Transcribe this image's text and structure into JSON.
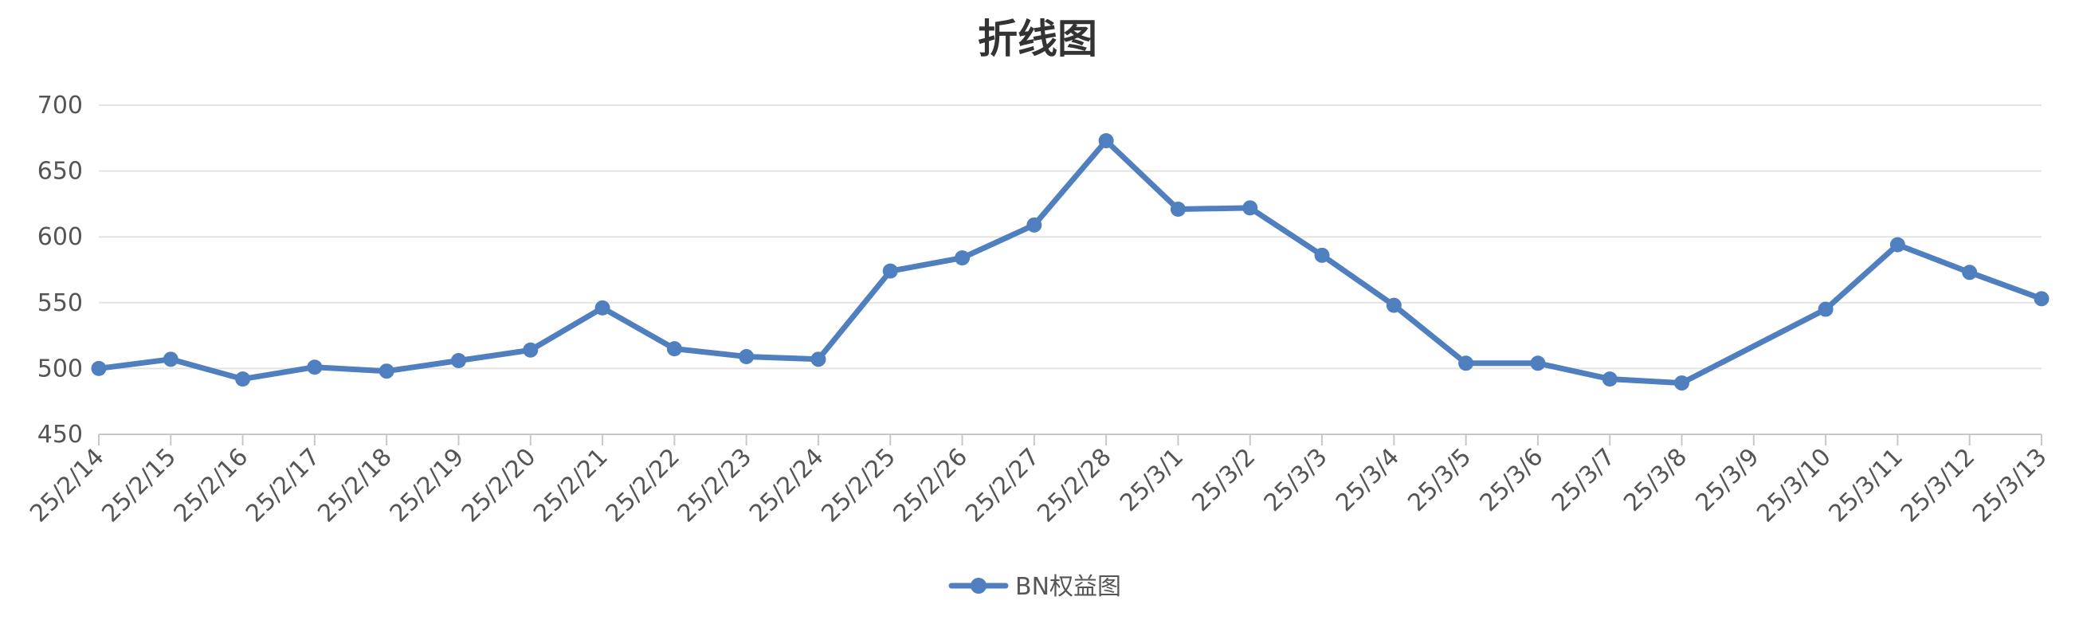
{
  "chart_data": {
    "type": "line",
    "title": "折线图",
    "xlabel": "",
    "ylabel": "",
    "x": [
      "25/2/14",
      "25/2/15",
      "25/2/16",
      "25/2/17",
      "25/2/18",
      "25/2/19",
      "25/2/20",
      "25/2/21",
      "25/2/22",
      "25/2/23",
      "25/2/24",
      "25/2/25",
      "25/2/26",
      "25/2/27",
      "25/2/28",
      "25/3/1",
      "25/3/2",
      "25/3/3",
      "25/3/4",
      "25/3/5",
      "25/3/6",
      "25/3/7",
      "25/3/8",
      "25/3/9",
      "25/3/10",
      "25/3/11",
      "25/3/12",
      "25/3/13"
    ],
    "series": [
      {
        "name": "BN权益图",
        "color": "#4f7fbf",
        "values": [
          500,
          507,
          492,
          501,
          498,
          506,
          514,
          546,
          515,
          509,
          507,
          574,
          584,
          609,
          673,
          621,
          622,
          586,
          548,
          504,
          504,
          492,
          489,
          null,
          545,
          594,
          573,
          553
        ]
      }
    ],
    "ylim": [
      450,
      700
    ],
    "yticks": [
      450,
      500,
      550,
      600,
      650,
      700
    ],
    "grid": true,
    "legend_position": "bottom-center"
  }
}
